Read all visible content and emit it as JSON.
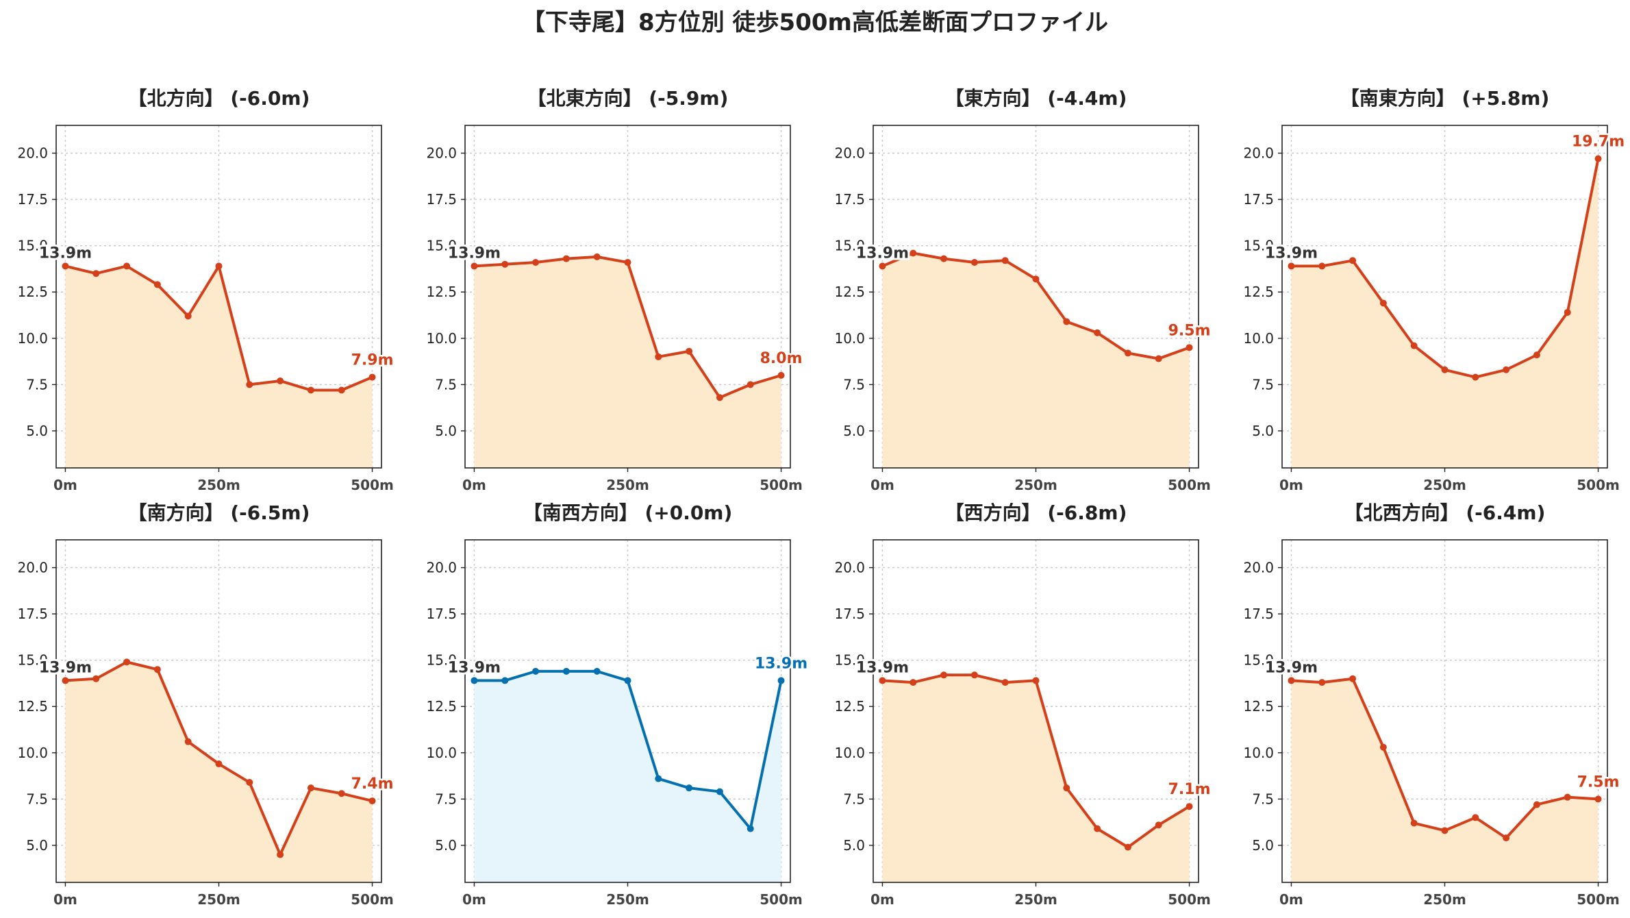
{
  "title": "【下寺尾】8方位別 徒歩500m高低差断面プロファイル",
  "colors": {
    "down_line": "#d4401a",
    "down_fill": "#fde9cc",
    "flat_line": "#0570b0",
    "flat_fill": "#e6f4fb",
    "start_label": "#333333"
  },
  "chart_data": [
    {
      "type": "area",
      "title": "【北方向】 (-6.0m)",
      "start_label": "13.9m",
      "end_label": "7.9m",
      "style": "down",
      "x": [
        0,
        50,
        100,
        150,
        200,
        250,
        300,
        350,
        400,
        450,
        500
      ],
      "y": [
        13.9,
        13.5,
        13.9,
        12.9,
        11.2,
        13.9,
        7.5,
        7.7,
        7.2,
        7.2,
        7.9
      ]
    },
    {
      "type": "area",
      "title": "【北東方向】 (-5.9m)",
      "start_label": "13.9m",
      "end_label": "8.0m",
      "style": "down",
      "x": [
        0,
        50,
        100,
        150,
        200,
        250,
        300,
        350,
        400,
        450,
        500
      ],
      "y": [
        13.9,
        14.0,
        14.1,
        14.3,
        14.4,
        14.1,
        9.0,
        9.3,
        6.8,
        7.5,
        8.0
      ]
    },
    {
      "type": "area",
      "title": "【東方向】 (-4.4m)",
      "start_label": "13.9m",
      "end_label": "9.5m",
      "style": "down",
      "x": [
        0,
        50,
        100,
        150,
        200,
        250,
        300,
        350,
        400,
        450,
        500
      ],
      "y": [
        13.9,
        14.6,
        14.3,
        14.1,
        14.2,
        13.2,
        10.9,
        10.3,
        9.2,
        8.9,
        9.5
      ]
    },
    {
      "type": "area",
      "title": "【南東方向】 (+5.8m)",
      "start_label": "13.9m",
      "end_label": "19.7m",
      "style": "down",
      "x": [
        0,
        50,
        100,
        150,
        200,
        250,
        300,
        350,
        400,
        450,
        500
      ],
      "y": [
        13.9,
        13.9,
        14.2,
        11.9,
        9.6,
        8.3,
        7.9,
        8.3,
        9.1,
        11.4,
        19.7
      ]
    },
    {
      "type": "area",
      "title": "【南方向】 (-6.5m)",
      "start_label": "13.9m",
      "end_label": "7.4m",
      "style": "down",
      "x": [
        0,
        50,
        100,
        150,
        200,
        250,
        300,
        350,
        400,
        450,
        500
      ],
      "y": [
        13.9,
        14.0,
        14.9,
        14.5,
        10.6,
        9.4,
        8.4,
        4.5,
        8.1,
        7.8,
        7.4
      ]
    },
    {
      "type": "area",
      "title": "【南西方向】 (+0.0m)",
      "start_label": "13.9m",
      "end_label": "13.9m",
      "style": "flat",
      "x": [
        0,
        50,
        100,
        150,
        200,
        250,
        300,
        350,
        400,
        450,
        500
      ],
      "y": [
        13.9,
        13.9,
        14.4,
        14.4,
        14.4,
        13.9,
        8.6,
        8.1,
        7.9,
        5.9,
        13.9
      ]
    },
    {
      "type": "area",
      "title": "【西方向】 (-6.8m)",
      "start_label": "13.9m",
      "end_label": "7.1m",
      "style": "down",
      "x": [
        0,
        50,
        100,
        150,
        200,
        250,
        300,
        350,
        400,
        450,
        500
      ],
      "y": [
        13.9,
        13.8,
        14.2,
        14.2,
        13.8,
        13.9,
        8.1,
        5.9,
        4.9,
        6.1,
        7.1
      ]
    },
    {
      "type": "area",
      "title": "【北西方向】 (-6.4m)",
      "start_label": "13.9m",
      "end_label": "7.5m",
      "style": "down",
      "x": [
        0,
        50,
        100,
        150,
        200,
        250,
        300,
        350,
        400,
        450,
        500
      ],
      "y": [
        13.9,
        13.8,
        14.0,
        10.3,
        6.2,
        5.8,
        6.5,
        5.4,
        7.2,
        7.6,
        7.5
      ]
    }
  ],
  "axes": {
    "ylim": [
      3.0,
      21.5
    ],
    "yticks": [
      "5.0",
      "7.5",
      "10.0",
      "12.5",
      "15.0",
      "17.5",
      "20.0"
    ],
    "ytick_values": [
      5.0,
      7.5,
      10.0,
      12.5,
      15.0,
      17.5,
      20.0
    ],
    "xlim": [
      -15,
      515
    ],
    "xticks": [
      "0m",
      "250m",
      "500m"
    ],
    "xtick_values": [
      0,
      250,
      500
    ],
    "grid": true
  }
}
